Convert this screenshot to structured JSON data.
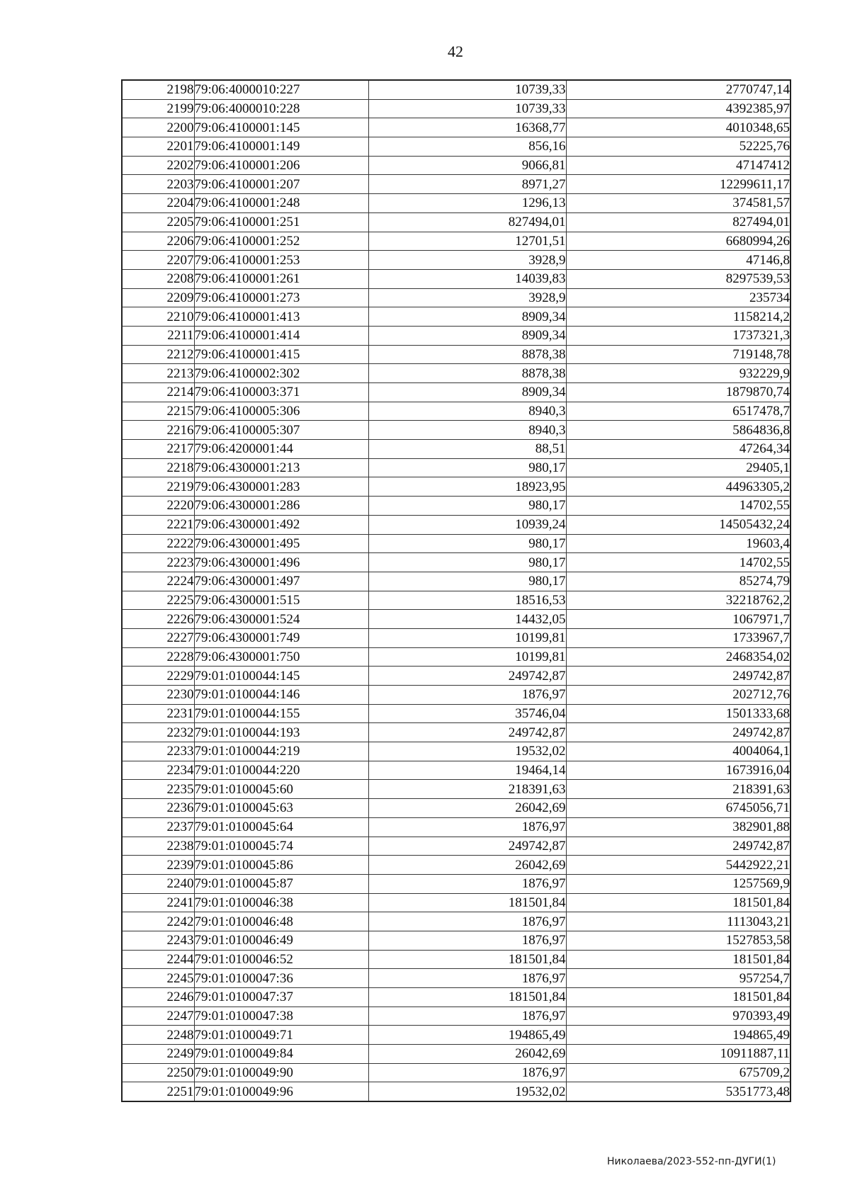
{
  "page": {
    "number": "42",
    "footer": "Николаева/2023-552-пп-ДУГИ(1)"
  },
  "table": {
    "rows": [
      [
        "2198",
        "79:06:4000010:227",
        "10739,33",
        "2770747,14"
      ],
      [
        "2199",
        "79:06:4000010:228",
        "10739,33",
        "4392385,97"
      ],
      [
        "2200",
        "79:06:4100001:145",
        "16368,77",
        "4010348,65"
      ],
      [
        "2201",
        "79:06:4100001:149",
        "856,16",
        "52225,76"
      ],
      [
        "2202",
        "79:06:4100001:206",
        "9066,81",
        "47147412"
      ],
      [
        "2203",
        "79:06:4100001:207",
        "8971,27",
        "12299611,17"
      ],
      [
        "2204",
        "79:06:4100001:248",
        "1296,13",
        "374581,57"
      ],
      [
        "2205",
        "79:06:4100001:251",
        "827494,01",
        "827494,01"
      ],
      [
        "2206",
        "79:06:4100001:252",
        "12701,51",
        "6680994,26"
      ],
      [
        "2207",
        "79:06:4100001:253",
        "3928,9",
        "47146,8"
      ],
      [
        "2208",
        "79:06:4100001:261",
        "14039,83",
        "8297539,53"
      ],
      [
        "2209",
        "79:06:4100001:273",
        "3928,9",
        "235734"
      ],
      [
        "2210",
        "79:06:4100001:413",
        "8909,34",
        "1158214,2"
      ],
      [
        "2211",
        "79:06:4100001:414",
        "8909,34",
        "1737321,3"
      ],
      [
        "2212",
        "79:06:4100001:415",
        "8878,38",
        "719148,78"
      ],
      [
        "2213",
        "79:06:4100002:302",
        "8878,38",
        "932229,9"
      ],
      [
        "2214",
        "79:06:4100003:371",
        "8909,34",
        "1879870,74"
      ],
      [
        "2215",
        "79:06:4100005:306",
        "8940,3",
        "6517478,7"
      ],
      [
        "2216",
        "79:06:4100005:307",
        "8940,3",
        "5864836,8"
      ],
      [
        "2217",
        "79:06:4200001:44",
        "88,51",
        "47264,34"
      ],
      [
        "2218",
        "79:06:4300001:213",
        "980,17",
        "29405,1"
      ],
      [
        "2219",
        "79:06:4300001:283",
        "18923,95",
        "44963305,2"
      ],
      [
        "2220",
        "79:06:4300001:286",
        "980,17",
        "14702,55"
      ],
      [
        "2221",
        "79:06:4300001:492",
        "10939,24",
        "14505432,24"
      ],
      [
        "2222",
        "79:06:4300001:495",
        "980,17",
        "19603,4"
      ],
      [
        "2223",
        "79:06:4300001:496",
        "980,17",
        "14702,55"
      ],
      [
        "2224",
        "79:06:4300001:497",
        "980,17",
        "85274,79"
      ],
      [
        "2225",
        "79:06:4300001:515",
        "18516,53",
        "32218762,2"
      ],
      [
        "2226",
        "79:06:4300001:524",
        "14432,05",
        "1067971,7"
      ],
      [
        "2227",
        "79:06:4300001:749",
        "10199,81",
        "1733967,7"
      ],
      [
        "2228",
        "79:06:4300001:750",
        "10199,81",
        "2468354,02"
      ],
      [
        "2229",
        "79:01:0100044:145",
        "249742,87",
        "249742,87"
      ],
      [
        "2230",
        "79:01:0100044:146",
        "1876,97",
        "202712,76"
      ],
      [
        "2231",
        "79:01:0100044:155",
        "35746,04",
        "1501333,68"
      ],
      [
        "2232",
        "79:01:0100044:193",
        "249742,87",
        "249742,87"
      ],
      [
        "2233",
        "79:01:0100044:219",
        "19532,02",
        "4004064,1"
      ],
      [
        "2234",
        "79:01:0100044:220",
        "19464,14",
        "1673916,04"
      ],
      [
        "2235",
        "79:01:0100045:60",
        "218391,63",
        "218391,63"
      ],
      [
        "2236",
        "79:01:0100045:63",
        "26042,69",
        "6745056,71"
      ],
      [
        "2237",
        "79:01:0100045:64",
        "1876,97",
        "382901,88"
      ],
      [
        "2238",
        "79:01:0100045:74",
        "249742,87",
        "249742,87"
      ],
      [
        "2239",
        "79:01:0100045:86",
        "26042,69",
        "5442922,21"
      ],
      [
        "2240",
        "79:01:0100045:87",
        "1876,97",
        "1257569,9"
      ],
      [
        "2241",
        "79:01:0100046:38",
        "181501,84",
        "181501,84"
      ],
      [
        "2242",
        "79:01:0100046:48",
        "1876,97",
        "1113043,21"
      ],
      [
        "2243",
        "79:01:0100046:49",
        "1876,97",
        "1527853,58"
      ],
      [
        "2244",
        "79:01:0100046:52",
        "181501,84",
        "181501,84"
      ],
      [
        "2245",
        "79:01:0100047:36",
        "1876,97",
        "957254,7"
      ],
      [
        "2246",
        "79:01:0100047:37",
        "181501,84",
        "181501,84"
      ],
      [
        "2247",
        "79:01:0100047:38",
        "1876,97",
        "970393,49"
      ],
      [
        "2248",
        "79:01:0100049:71",
        "194865,49",
        "194865,49"
      ],
      [
        "2249",
        "79:01:0100049:84",
        "26042,69",
        "10911887,11"
      ],
      [
        "2250",
        "79:01:0100049:90",
        "1876,97",
        "675709,2"
      ],
      [
        "2251",
        "79:01:0100049:96",
        "19532,02",
        "5351773,48"
      ]
    ]
  }
}
